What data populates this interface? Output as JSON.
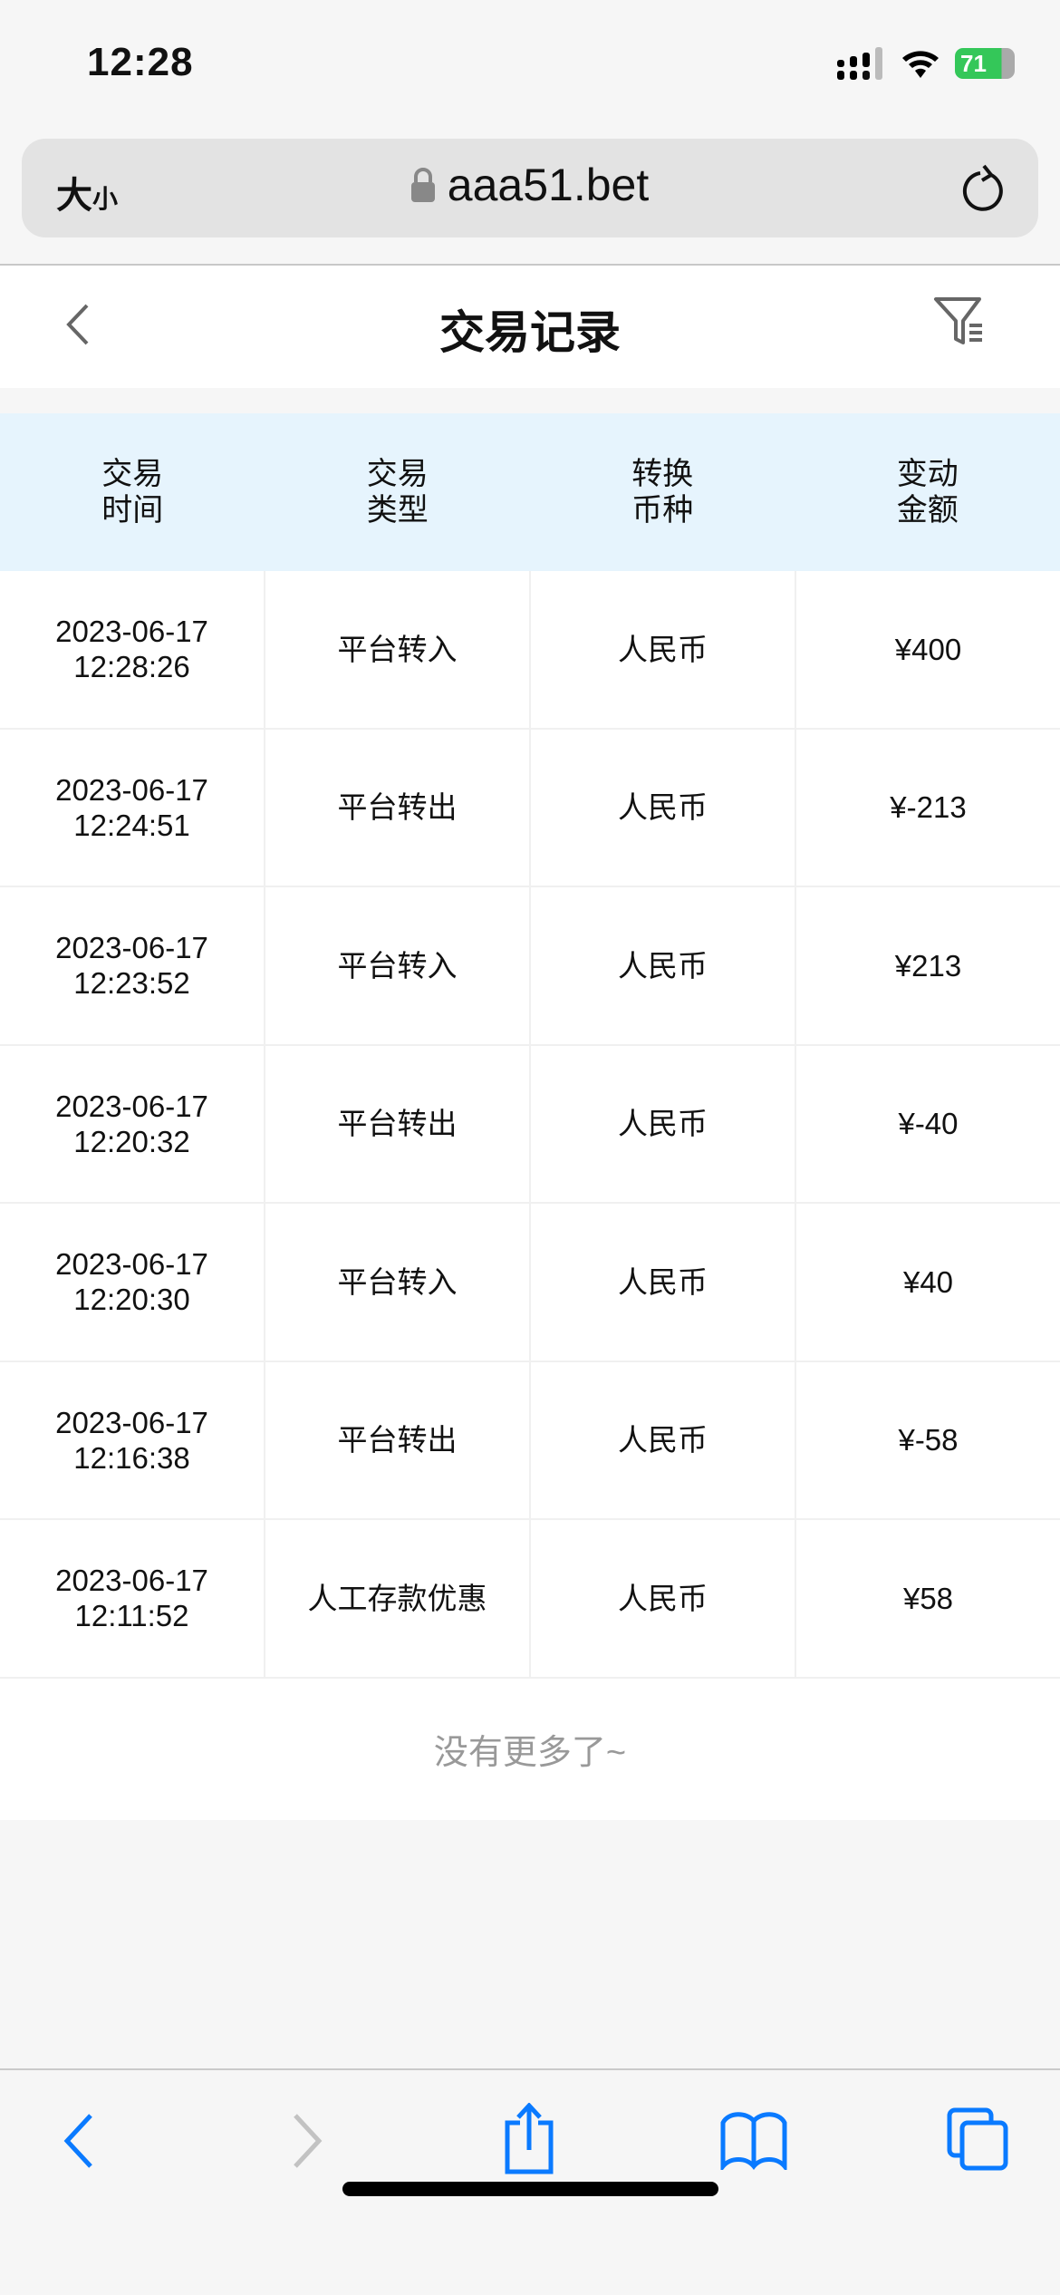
{
  "status_bar": {
    "time": "12:28",
    "battery": "71"
  },
  "browser": {
    "text_size_label_big": "大",
    "text_size_label_small": "小",
    "url": "aaa51.bet"
  },
  "header": {
    "title": "交易记录"
  },
  "table": {
    "columns": [
      "交易\n时间",
      "交易\n类型",
      "转换\n币种",
      "变动\n金额"
    ],
    "rows": [
      {
        "time": "2023-06-17\n12:28:26",
        "type": "平台转入",
        "currency": "人民币",
        "amount": "¥400"
      },
      {
        "time": "2023-06-17\n12:24:51",
        "type": "平台转出",
        "currency": "人民币",
        "amount": "¥-213"
      },
      {
        "time": "2023-06-17\n12:23:52",
        "type": "平台转入",
        "currency": "人民币",
        "amount": "¥213"
      },
      {
        "time": "2023-06-17\n12:20:32",
        "type": "平台转出",
        "currency": "人民币",
        "amount": "¥-40"
      },
      {
        "time": "2023-06-17\n12:20:30",
        "type": "平台转入",
        "currency": "人民币",
        "amount": "¥40"
      },
      {
        "time": "2023-06-17\n12:16:38",
        "type": "平台转出",
        "currency": "人民币",
        "amount": "¥-58"
      },
      {
        "time": "2023-06-17\n12:11:52",
        "type": "人工存款优惠",
        "currency": "人民币",
        "amount": "¥58"
      }
    ],
    "footer": "没有更多了~"
  },
  "colors": {
    "accent": "#0a7aff",
    "header_bg": "#e6f4fd",
    "battery": "#34c759"
  }
}
